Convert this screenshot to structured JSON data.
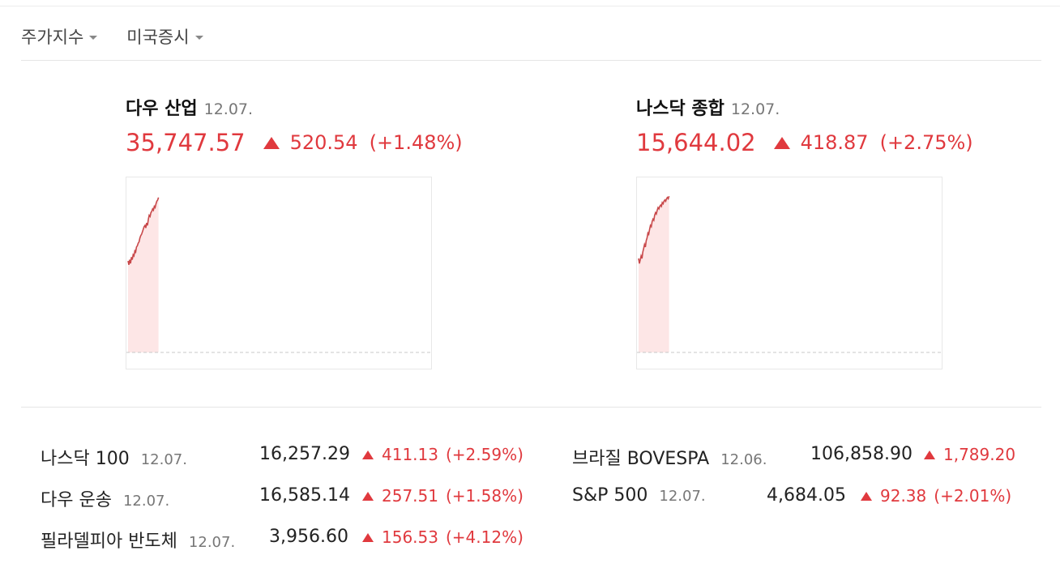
{
  "filters": {
    "index_label": "주가지수",
    "market_label": "미국증시"
  },
  "cards": [
    {
      "name": "다우 산업",
      "date": "12.07.",
      "value": "35,747.57",
      "change": "520.54",
      "pct": "(+1.48%)",
      "chart": {
        "progress": 0.1,
        "series": [
          0.72,
          0.69,
          0.73,
          0.7,
          0.75,
          0.73,
          0.77,
          0.76,
          0.8,
          0.79,
          0.83,
          0.84,
          0.86,
          0.87,
          0.9,
          0.92,
          0.93,
          0.95,
          0.97,
          0.99,
          1.0,
          0.98,
          1.02,
          1.0,
          1.05,
          1.08,
          1.07,
          1.1,
          1.11,
          1.13,
          1.12,
          1.15,
          1.14,
          1.17,
          1.19,
          1.2,
          1.22
        ]
      }
    },
    {
      "name": "나스닥 종합",
      "date": "12.07.",
      "value": "15,644.02",
      "change": "418.87",
      "pct": "(+2.75%)",
      "chart": {
        "progress": 0.1,
        "series": [
          0.74,
          0.7,
          0.73,
          0.76,
          0.74,
          0.79,
          0.82,
          0.85,
          0.83,
          0.88,
          0.9,
          0.94,
          0.93,
          0.97,
          1.0,
          0.99,
          1.03,
          1.05,
          1.04,
          1.08,
          1.1,
          1.09,
          1.12,
          1.14,
          1.13,
          1.15,
          1.16,
          1.15,
          1.18,
          1.17,
          1.19,
          1.2,
          1.19,
          1.21,
          1.22,
          1.21,
          1.23
        ]
      }
    }
  ],
  "left_rows": [
    {
      "name": "나스닥 100",
      "date": "12.07.",
      "value": "16,257.29",
      "change": "411.13",
      "pct": "(+2.59%)"
    },
    {
      "name": "다우 운송",
      "date": "12.07.",
      "value": "16,585.14",
      "change": "257.51",
      "pct": "(+1.58%)"
    },
    {
      "name": "필라델피아 반도체",
      "date": "12.07.",
      "value": "3,956.60",
      "change": "156.53",
      "pct": "(+4.12%)"
    }
  ],
  "right_rows": [
    {
      "name": "브라질 BOVESPA",
      "date": "12.06.",
      "value": "106,858.90",
      "change": "1,789.20",
      "pct": ""
    },
    {
      "name": "S&P 500",
      "date": "12.07.",
      "value": "4,684.05",
      "change": "92.38",
      "pct": "(+2.01%)"
    }
  ],
  "colors": {
    "up": "#e0393e",
    "fill": "#fde6e6",
    "line": "#c8484a"
  }
}
